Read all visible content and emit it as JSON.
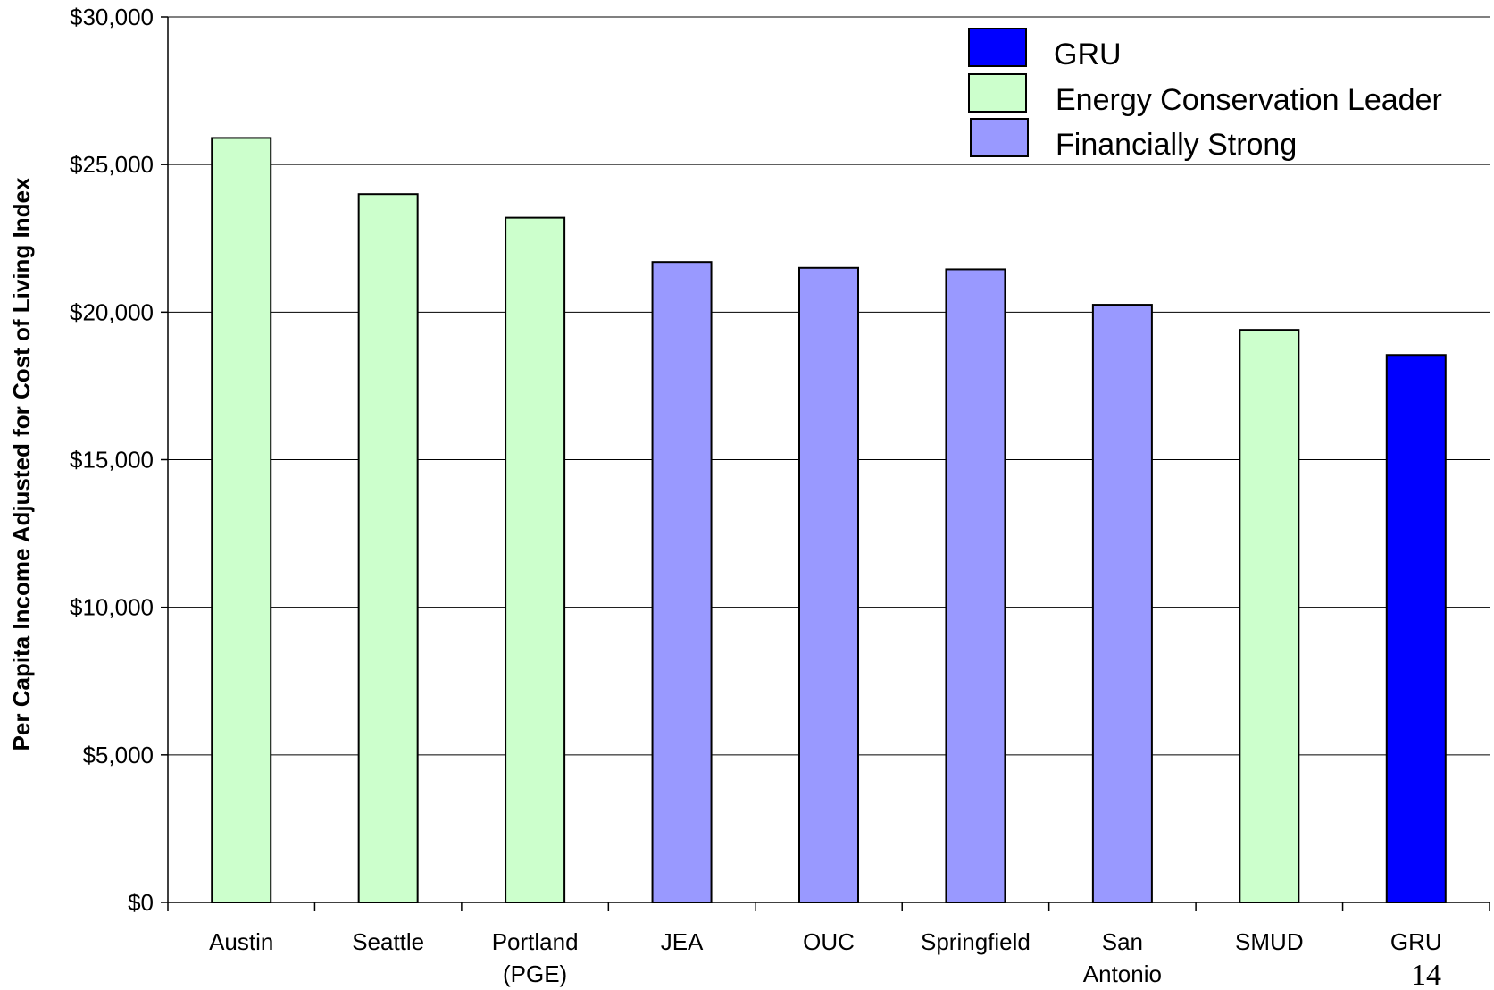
{
  "chart_data": {
    "type": "bar",
    "title": "",
    "xlabel": "",
    "ylabel": "Per Capita Income Adjusted for Cost of Living Index",
    "ylim": [
      0,
      30000
    ],
    "y_ticks": [
      "$0",
      "$5,000",
      "$10,000",
      "$15,000",
      "$20,000",
      "$25,000",
      "$30,000"
    ],
    "y_tick_values": [
      0,
      5000,
      10000,
      15000,
      20000,
      25000,
      30000
    ],
    "grid": true,
    "legend_position": "top-right",
    "categories": [
      [
        "Austin"
      ],
      [
        "Seattle"
      ],
      [
        "Portland",
        "(PGE)"
      ],
      [
        "JEA"
      ],
      [
        "OUC"
      ],
      [
        "Springfield"
      ],
      [
        "San",
        "Antonio"
      ],
      [
        "SMUD"
      ],
      [
        "GRU"
      ]
    ],
    "values": [
      25900,
      24000,
      23200,
      21700,
      21500,
      21450,
      20250,
      19400,
      18550
    ],
    "groups": [
      "Energy Conservation Leader",
      "Energy Conservation Leader",
      "Energy Conservation Leader",
      "Financially Strong",
      "Financially Strong",
      "Financially Strong",
      "Financially Strong",
      "Energy Conservation Leader",
      "GRU"
    ],
    "legend": [
      {
        "name": "GRU",
        "color": "#0000ff"
      },
      {
        "name": "Energy Conservation Leader",
        "color": "#ccffcc"
      },
      {
        "name": "Financially Strong",
        "color": "#9999ff"
      }
    ]
  },
  "page_number": "14"
}
